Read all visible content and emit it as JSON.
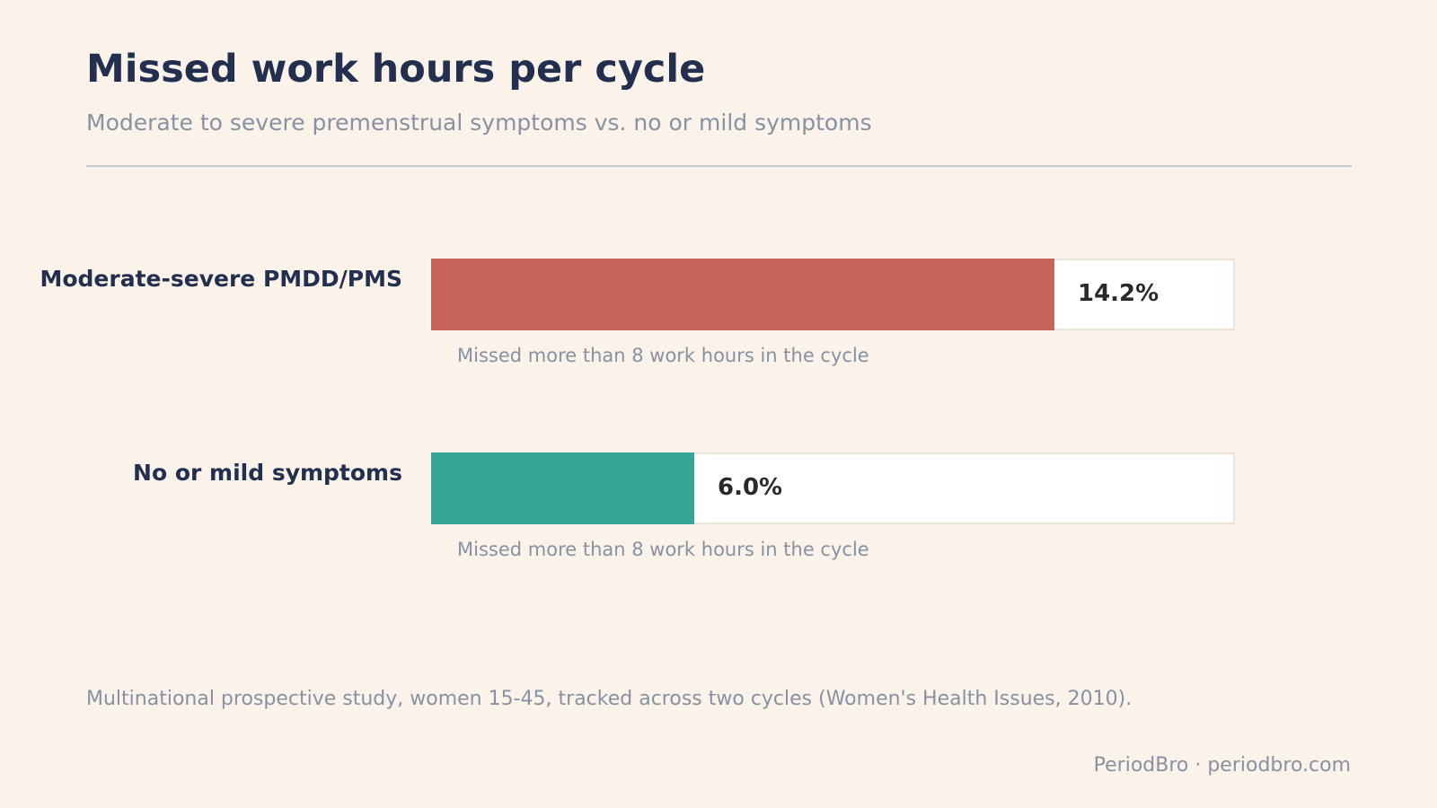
{
  "header": {
    "title": "Missed work hours per cycle",
    "subtitle": "Moderate to severe premenstrual symptoms vs. no or mild symptoms"
  },
  "rows": [
    {
      "label": "Moderate-severe PMDD/PMS",
      "value_label": "14.2%",
      "note": "Missed more than 8 work hours in the cycle",
      "color": "#c4645a"
    },
    {
      "label": "No or mild symptoms",
      "value_label": "6.0%",
      "note": "Missed more than 8 work hours in the cycle",
      "color": "#37a596"
    }
  ],
  "footer": {
    "source": "Multinational prospective study, women 15-45, tracked across two cycles (Women's Health Issues, 2010).",
    "brand": "PeriodBro · periodbro.com"
  },
  "chart_data": {
    "type": "bar",
    "orientation": "horizontal",
    "title": "Missed work hours per cycle",
    "subtitle": "Moderate to severe premenstrual symptoms vs. no or mild symptoms",
    "categories": [
      "Moderate-severe PMDD/PMS",
      "No or mild symptoms"
    ],
    "values": [
      14.2,
      6.0
    ],
    "value_labels": [
      "14.2%",
      "6.0%"
    ],
    "unit": "%",
    "xlim": [
      0,
      18.3
    ],
    "colors": [
      "#c4645a",
      "#37a596"
    ],
    "grid": false,
    "legend": "none"
  }
}
